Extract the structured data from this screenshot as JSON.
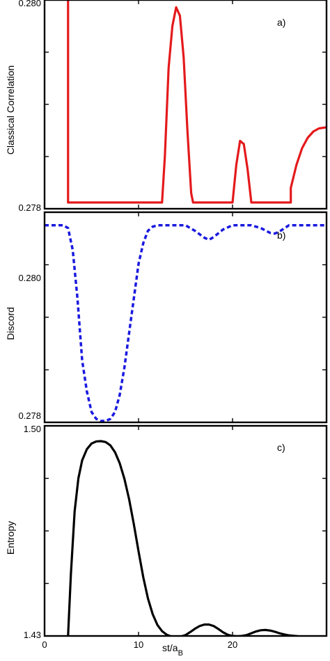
{
  "chart_data": [
    {
      "type": "line",
      "panel_label": "a)",
      "ylabel": "Classical Correlation",
      "xlim": [
        0,
        30
      ],
      "ylim": [
        0.278,
        0.28
      ],
      "yticks": [
        0.278,
        0.28
      ],
      "ytick_labels": [
        "0.278",
        "0.280"
      ],
      "series": [
        {
          "color": "#e41a1c",
          "style": "solid",
          "x": [
            2.4,
            2.5,
            2.5,
            3,
            5,
            8,
            10,
            12,
            12.5,
            12.8,
            13.2,
            13.6,
            14.0,
            14.4,
            14.8,
            15.2,
            15.6,
            15.8,
            16,
            18,
            19,
            20,
            20,
            20.4,
            20.8,
            21.2,
            21.6,
            22.0,
            22.4,
            22.6,
            24,
            26,
            26.2,
            26.2,
            26.8,
            27.4,
            28,
            28.6,
            29.2,
            30
          ],
          "y": [
            0.28,
            0.28,
            0.27806,
            0.27806,
            0.27806,
            0.27806,
            0.27806,
            0.27806,
            0.27806,
            0.2785,
            0.27935,
            0.27975,
            0.27993,
            0.27985,
            0.27945,
            0.27875,
            0.27815,
            0.27806,
            0.27806,
            0.27806,
            0.27806,
            0.27806,
            0.27806,
            0.27842,
            0.27865,
            0.27862,
            0.27838,
            0.27806,
            0.27806,
            0.27806,
            0.27806,
            0.27806,
            0.27806,
            0.2782,
            0.27842,
            0.27858,
            0.27868,
            0.27874,
            0.27877,
            0.27878
          ]
        }
      ]
    },
    {
      "type": "line",
      "panel_label": "b)",
      "ylabel": "Discord",
      "xlim": [
        0,
        30
      ],
      "ylim": [
        0.2779,
        0.28095
      ],
      "yticks": [
        0.278,
        0.28
      ],
      "ytick_labels": [
        "0.278",
        "0.280"
      ],
      "series": [
        {
          "color": "#1a1adf",
          "style": "dashed",
          "x": [
            0,
            2,
            2.5,
            3,
            3.5,
            4,
            4.5,
            5,
            5.5,
            6,
            6.5,
            7,
            7.5,
            8,
            8.5,
            9,
            9.5,
            10,
            10.5,
            11,
            11.5,
            12,
            12.5,
            13,
            15,
            16,
            17,
            17.5,
            18,
            19,
            20,
            22,
            23,
            24,
            24.5,
            25,
            26,
            30
          ],
          "y": [
            0.28076,
            0.28076,
            0.28072,
            0.2804,
            0.2797,
            0.2788,
            0.27835,
            0.27805,
            0.27795,
            0.27792,
            0.27792,
            0.27795,
            0.27805,
            0.2783,
            0.2787,
            0.2792,
            0.2797,
            0.2802,
            0.2805,
            0.28068,
            0.28074,
            0.28076,
            0.28076,
            0.28076,
            0.28076,
            0.28068,
            0.28058,
            0.28055,
            0.28059,
            0.2807,
            0.28076,
            0.28076,
            0.28072,
            0.28065,
            0.28064,
            0.28067,
            0.28076,
            0.28076
          ]
        }
      ]
    },
    {
      "type": "line",
      "panel_label": "c)",
      "ylabel": "Entropy",
      "xlabel": "st/a_B",
      "xlim": [
        0,
        30
      ],
      "ylim": [
        1.43,
        1.5
      ],
      "yticks": [
        1.43,
        1.5
      ],
      "ytick_labels": [
        "1.43",
        "1.50"
      ],
      "xticks": [
        0,
        10,
        20
      ],
      "xtick_labels": [
        "0",
        "10",
        "20"
      ],
      "series": [
        {
          "color": "#000000",
          "style": "solid",
          "x": [
            2.5,
            2.8,
            3.2,
            3.6,
            4.0,
            4.5,
            5.0,
            5.5,
            6.0,
            6.5,
            7.0,
            7.5,
            8.0,
            8.5,
            9.0,
            9.5,
            10.0,
            10.5,
            11.0,
            11.5,
            12.0,
            12.5,
            13.0,
            13.5,
            14.0,
            14.5,
            15.0,
            15.5,
            16.0,
            16.5,
            17.0,
            17.5,
            18.0,
            18.5,
            19.0,
            19.5,
            20.0,
            20.5,
            21.0,
            21.5,
            22.0,
            22.5,
            23.0,
            23.5,
            24.0,
            24.5,
            25.0,
            25.5,
            26.0,
            27.0,
            28.0,
            29.0,
            30.0
          ],
          "y": [
            1.43,
            1.4505,
            1.4715,
            1.4825,
            1.4885,
            1.4922,
            1.4941,
            1.4948,
            1.4949,
            1.4946,
            1.4935,
            1.4912,
            1.4875,
            1.4823,
            1.4755,
            1.4672,
            1.4582,
            1.4496,
            1.4425,
            1.4373,
            1.4337,
            1.4316,
            1.4304,
            1.4298,
            1.4296,
            1.4298,
            1.4303,
            1.4313,
            1.4324,
            1.4333,
            1.4338,
            1.4338,
            1.4333,
            1.4323,
            1.4312,
            1.4304,
            1.43,
            1.4299,
            1.43,
            1.4303,
            1.4309,
            1.4315,
            1.4319,
            1.432,
            1.4318,
            1.4314,
            1.4309,
            1.4305,
            1.4302,
            1.4299,
            1.4298,
            1.4298,
            1.4298
          ]
        }
      ]
    }
  ],
  "xaxis": {
    "label_main": "st/a",
    "label_sub": "B"
  }
}
